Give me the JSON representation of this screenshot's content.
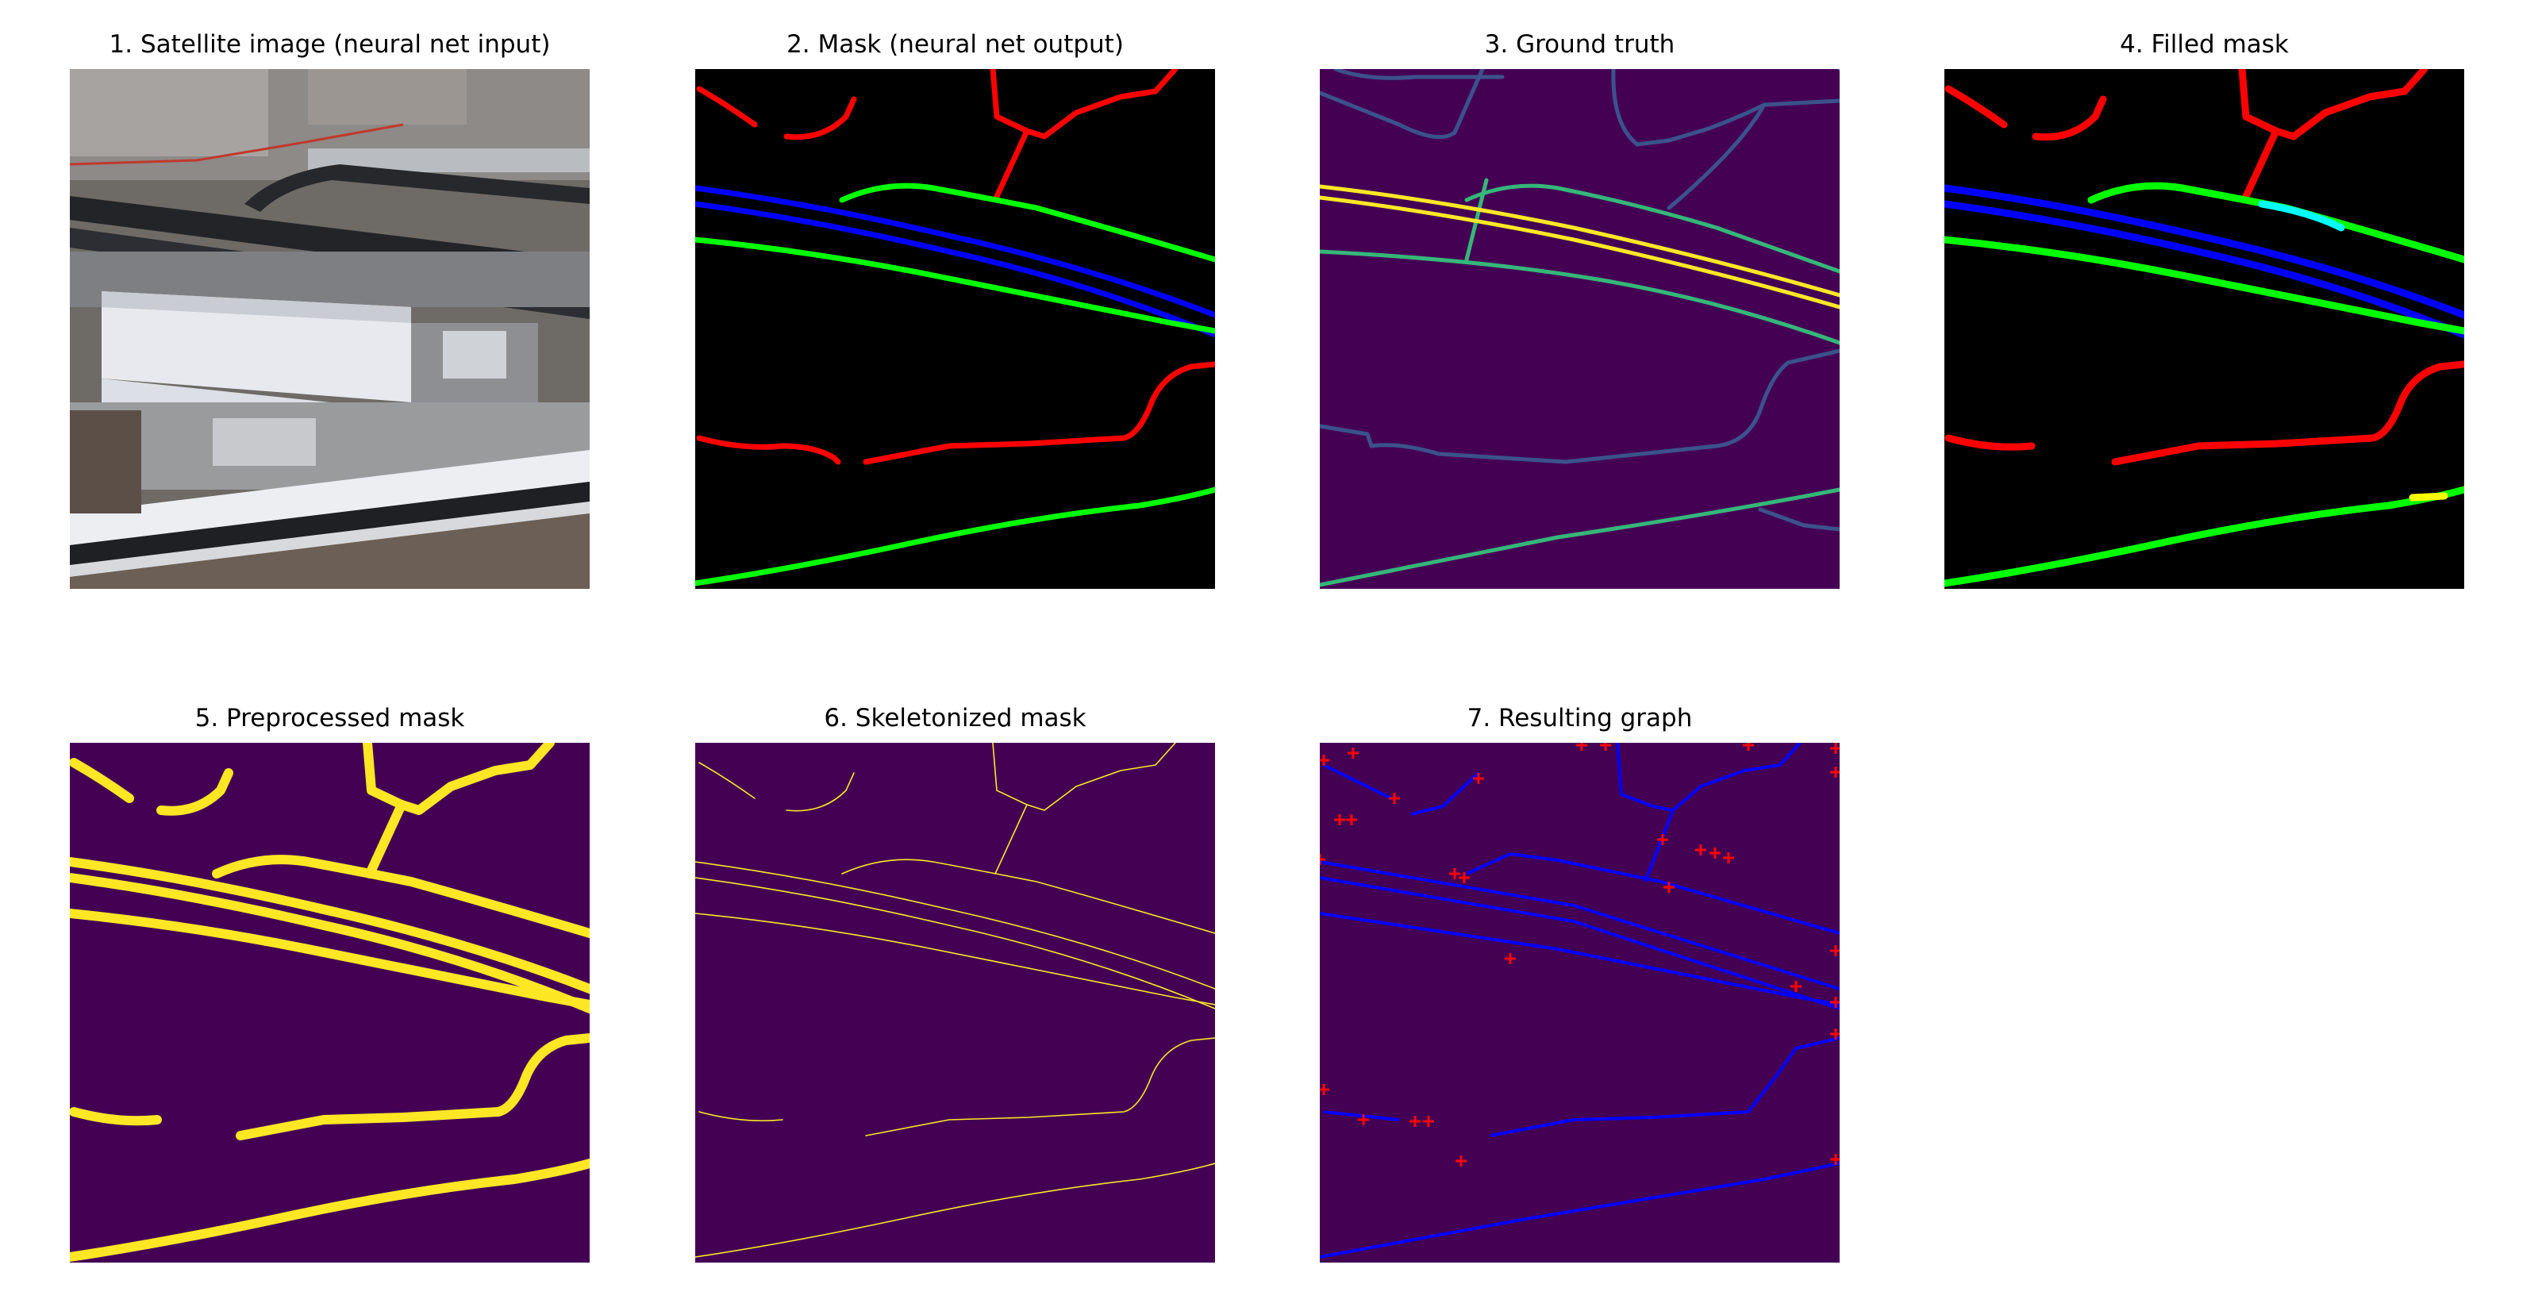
{
  "figure": {
    "panels": [
      {
        "title": "1. Satellite image (neural net input)"
      },
      {
        "title": "2. Mask (neural net output)"
      },
      {
        "title": "3. Ground truth"
      },
      {
        "title": "4. Filled mask"
      },
      {
        "title": "5. Preprocessed mask"
      },
      {
        "title": "6. Skeletonized mask"
      },
      {
        "title": "7. Resulting graph"
      }
    ]
  },
  "colors": {
    "mask_red": "#ff0000",
    "mask_green": "#00ff00",
    "mask_blue": "#0000ff",
    "viridis_bg": "#440154",
    "viridis_yellow": "#fde725",
    "gt_dark": "#3b528b",
    "gt_teal": "#35b779",
    "graph_line": "#0000ff",
    "graph_node": "#ff0000"
  }
}
